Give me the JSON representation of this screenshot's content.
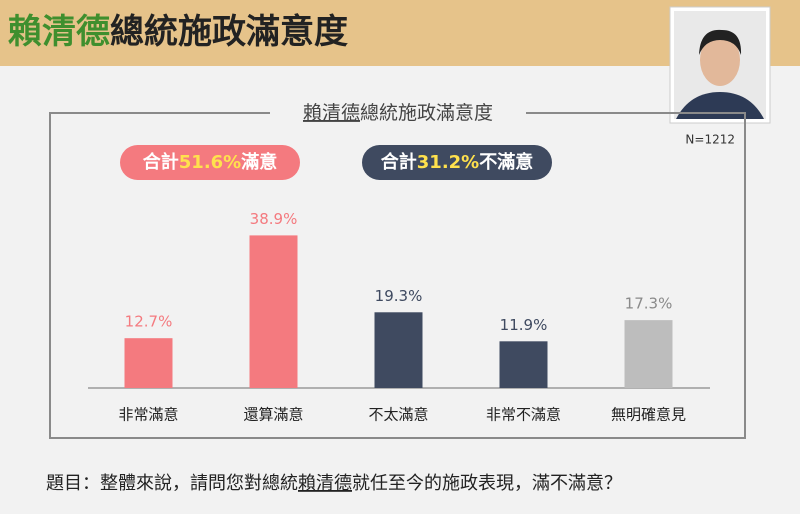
{
  "header": {
    "title_highlight": "賴清德",
    "title_rest": "總統施政滿意度",
    "sample": "N=1212"
  },
  "chart_data": {
    "type": "bar",
    "title_highlight": "賴清德",
    "title_rest": "總統施政滿意度",
    "summary": [
      {
        "prefix": "合計",
        "value": "51.6%",
        "suffix": "滿意",
        "color": "#f47a7f"
      },
      {
        "prefix": "合計",
        "value": "31.2%",
        "suffix": "不滿意",
        "color": "#3f4a60"
      }
    ],
    "categories": [
      "非常滿意",
      "還算滿意",
      "不太滿意",
      "非常不滿意",
      "無明確意見"
    ],
    "values": [
      12.7,
      38.9,
      19.3,
      11.9,
      17.3
    ],
    "value_labels": [
      "12.7%",
      "38.9%",
      "19.3%",
      "11.9%",
      "17.3%"
    ],
    "colors": [
      "#f47a7f",
      "#f47a7f",
      "#3f4a60",
      "#3f4a60",
      "#bdbdbd"
    ],
    "label_colors": [
      "#f47a7f",
      "#f47a7f",
      "#3f4a60",
      "#3f4a60",
      "#8a8a8a"
    ]
  },
  "footer": {
    "question_start": "題目：整體來說，請問您對總統",
    "question_name": "賴清德",
    "question_end": "就任至今的施政表現，滿不滿意？"
  }
}
